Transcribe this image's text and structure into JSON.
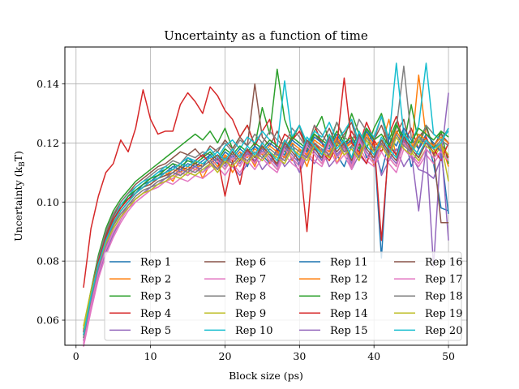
{
  "chart_data": {
    "type": "line",
    "title": "Uncertainty as a function of time",
    "xlabel": "Block size (ps)",
    "ylabel": "Uncertainty (k",
    "ylabel_sub": "B",
    "ylabel_tail": "T)",
    "xlim": [
      -1.5,
      52.5
    ],
    "ylim": [
      0.0515,
      0.1525
    ],
    "xticks": [
      0,
      10,
      20,
      30,
      40,
      50
    ],
    "xtick_labels": [
      "0",
      "10",
      "20",
      "30",
      "40",
      "50"
    ],
    "yticks": [
      0.06,
      0.08,
      0.1,
      0.12,
      0.14
    ],
    "ytick_labels": [
      "0.06",
      "0.08",
      "0.10",
      "0.12",
      "0.14"
    ],
    "grid": true,
    "legend_position": "lower-right",
    "legend_columns": 4,
    "x_start": 1,
    "x_end": 50,
    "series": [
      {
        "name": "Rep 1",
        "color": "#1f77b4",
        "values": [
          0.054,
          0.067,
          0.079,
          0.088,
          0.094,
          0.098,
          0.101,
          0.103,
          0.106,
          0.108,
          0.11,
          0.111,
          0.113,
          0.11,
          0.115,
          0.113,
          0.112,
          0.116,
          0.113,
          0.115,
          0.114,
          0.117,
          0.112,
          0.119,
          0.116,
          0.113,
          0.118,
          0.115,
          0.12,
          0.112,
          0.117,
          0.119,
          0.114,
          0.121,
          0.116,
          0.112,
          0.119,
          0.123,
          0.115,
          0.118,
          0.11,
          0.12,
          0.116,
          0.124,
          0.112,
          0.118,
          0.122,
          0.113,
          0.098,
          0.097
        ]
      },
      {
        "name": "Rep 2",
        "color": "#ff7f0e",
        "values": [
          0.053,
          0.066,
          0.078,
          0.086,
          0.092,
          0.097,
          0.1,
          0.103,
          0.105,
          0.107,
          0.108,
          0.11,
          0.107,
          0.112,
          0.11,
          0.114,
          0.108,
          0.113,
          0.111,
          0.116,
          0.11,
          0.114,
          0.117,
          0.112,
          0.119,
          0.113,
          0.116,
          0.121,
          0.114,
          0.118,
          0.112,
          0.12,
          0.116,
          0.123,
          0.113,
          0.118,
          0.121,
          0.115,
          0.125,
          0.112,
          0.119,
          0.128,
          0.115,
          0.121,
          0.117,
          0.143,
          0.122,
          0.116,
          0.12,
          0.112
        ]
      },
      {
        "name": "Rep 3",
        "color": "#2ca02c",
        "values": [
          0.057,
          0.07,
          0.082,
          0.091,
          0.097,
          0.101,
          0.104,
          0.107,
          0.109,
          0.111,
          0.113,
          0.115,
          0.117,
          0.119,
          0.121,
          0.123,
          0.121,
          0.124,
          0.12,
          0.125,
          0.118,
          0.122,
          0.126,
          0.119,
          0.132,
          0.123,
          0.145,
          0.128,
          0.121,
          0.126,
          0.118,
          0.124,
          0.129,
          0.12,
          0.127,
          0.121,
          0.13,
          0.123,
          0.118,
          0.125,
          0.13,
          0.121,
          0.127,
          0.119,
          0.133,
          0.12,
          0.126,
          0.118,
          0.124,
          0.113
        ]
      },
      {
        "name": "Rep 4",
        "color": "#d62728",
        "values": [
          0.071,
          0.091,
          0.102,
          0.11,
          0.113,
          0.121,
          0.117,
          0.125,
          0.138,
          0.128,
          0.123,
          0.124,
          0.124,
          0.133,
          0.137,
          0.134,
          0.13,
          0.139,
          0.136,
          0.131,
          0.128,
          0.122,
          0.126,
          0.119,
          0.124,
          0.128,
          0.117,
          0.123,
          0.121,
          0.124,
          0.118,
          0.126,
          0.12,
          0.115,
          0.121,
          0.118,
          0.124,
          0.119,
          0.127,
          0.121,
          0.117,
          0.123,
          0.129,
          0.12,
          0.125,
          0.118,
          0.122,
          0.116,
          0.12,
          0.115
        ]
      },
      {
        "name": "Rep 5",
        "color": "#9467bd",
        "values": [
          0.052,
          0.064,
          0.075,
          0.083,
          0.089,
          0.094,
          0.098,
          0.101,
          0.103,
          0.105,
          0.107,
          0.108,
          0.11,
          0.109,
          0.111,
          0.112,
          0.11,
          0.113,
          0.111,
          0.114,
          0.112,
          0.109,
          0.113,
          0.116,
          0.111,
          0.114,
          0.117,
          0.112,
          0.115,
          0.11,
          0.116,
          0.113,
          0.118,
          0.112,
          0.115,
          0.119,
          0.111,
          0.116,
          0.113,
          0.12,
          0.109,
          0.114,
          0.118,
          0.112,
          0.116,
          0.111,
          0.11,
          0.108,
          0.115,
          0.137
        ]
      },
      {
        "name": "Rep 6",
        "color": "#8c564b",
        "values": [
          0.055,
          0.068,
          0.08,
          0.089,
          0.095,
          0.1,
          0.103,
          0.106,
          0.108,
          0.11,
          0.112,
          0.113,
          0.115,
          0.117,
          0.116,
          0.118,
          0.115,
          0.119,
          0.117,
          0.121,
          0.118,
          0.122,
          0.119,
          0.14,
          0.122,
          0.119,
          0.124,
          0.118,
          0.122,
          0.126,
          0.117,
          0.123,
          0.12,
          0.125,
          0.119,
          0.123,
          0.127,
          0.118,
          0.124,
          0.121,
          0.126,
          0.119,
          0.123,
          0.128,
          0.117,
          0.122,
          0.125,
          0.119,
          0.123,
          0.12
        ]
      },
      {
        "name": "Rep 7",
        "color": "#e377c2",
        "values": [
          0.051,
          0.063,
          0.074,
          0.082,
          0.088,
          0.093,
          0.097,
          0.1,
          0.102,
          0.104,
          0.105,
          0.107,
          0.106,
          0.108,
          0.107,
          0.109,
          0.108,
          0.11,
          0.112,
          0.109,
          0.113,
          0.11,
          0.114,
          0.111,
          0.115,
          0.112,
          0.11,
          0.116,
          0.113,
          0.111,
          0.117,
          0.114,
          0.112,
          0.118,
          0.113,
          0.116,
          0.111,
          0.119,
          0.114,
          0.112,
          0.117,
          0.113,
          0.11,
          0.118,
          0.115,
          0.112,
          0.116,
          0.113,
          0.117,
          0.114
        ]
      },
      {
        "name": "Rep 8",
        "color": "#7f7f7f",
        "values": [
          0.056,
          0.069,
          0.081,
          0.09,
          0.096,
          0.1,
          0.103,
          0.105,
          0.107,
          0.109,
          0.111,
          0.112,
          0.114,
          0.113,
          0.116,
          0.115,
          0.117,
          0.116,
          0.118,
          0.12,
          0.117,
          0.121,
          0.119,
          0.123,
          0.12,
          0.124,
          0.121,
          0.119,
          0.125,
          0.122,
          0.118,
          0.126,
          0.123,
          0.119,
          0.127,
          0.122,
          0.12,
          0.128,
          0.124,
          0.121,
          0.129,
          0.119,
          0.125,
          0.146,
          0.122,
          0.118,
          0.126,
          0.123,
          0.121,
          0.125
        ]
      },
      {
        "name": "Rep 9",
        "color": "#bcbd22",
        "values": [
          0.058,
          0.07,
          0.08,
          0.087,
          0.091,
          0.095,
          0.098,
          0.101,
          0.103,
          0.104,
          0.106,
          0.107,
          0.108,
          0.11,
          0.109,
          0.111,
          0.11,
          0.112,
          0.114,
          0.111,
          0.115,
          0.112,
          0.116,
          0.113,
          0.117,
          0.114,
          0.111,
          0.118,
          0.115,
          0.112,
          0.119,
          0.116,
          0.113,
          0.12,
          0.115,
          0.118,
          0.112,
          0.121,
          0.116,
          0.113,
          0.119,
          0.115,
          0.112,
          0.12,
          0.117,
          0.114,
          0.118,
          0.115,
          0.119,
          0.116
        ]
      },
      {
        "name": "Rep 10",
        "color": "#17becf",
        "values": [
          0.054,
          0.067,
          0.079,
          0.088,
          0.094,
          0.099,
          0.102,
          0.105,
          0.107,
          0.108,
          0.11,
          0.112,
          0.111,
          0.113,
          0.115,
          0.114,
          0.116,
          0.118,
          0.115,
          0.119,
          0.121,
          0.118,
          0.122,
          0.12,
          0.124,
          0.121,
          0.119,
          0.141,
          0.122,
          0.126,
          0.12,
          0.124,
          0.122,
          0.127,
          0.121,
          0.124,
          0.128,
          0.12,
          0.125,
          0.122,
          0.129,
          0.121,
          0.147,
          0.123,
          0.12,
          0.126,
          0.147,
          0.123,
          0.121,
          0.124
        ]
      },
      {
        "name": "Rep 11",
        "color": "#1f77b4",
        "values": [
          0.056,
          0.069,
          0.08,
          0.088,
          0.094,
          0.098,
          0.101,
          0.104,
          0.106,
          0.107,
          0.109,
          0.11,
          0.112,
          0.111,
          0.113,
          0.112,
          0.114,
          0.116,
          0.113,
          0.117,
          0.115,
          0.118,
          0.116,
          0.119,
          0.117,
          0.12,
          0.118,
          0.116,
          0.121,
          0.119,
          0.117,
          0.122,
          0.12,
          0.118,
          0.123,
          0.119,
          0.121,
          0.117,
          0.124,
          0.12,
          0.081,
          0.122,
          0.119,
          0.125,
          0.121,
          0.118,
          0.123,
          0.12,
          0.117,
          0.096
        ]
      },
      {
        "name": "Rep 12",
        "color": "#ff7f0e",
        "values": [
          0.055,
          0.068,
          0.079,
          0.087,
          0.093,
          0.097,
          0.1,
          0.103,
          0.105,
          0.106,
          0.108,
          0.109,
          0.111,
          0.11,
          0.112,
          0.111,
          0.113,
          0.115,
          0.112,
          0.116,
          0.114,
          0.117,
          0.115,
          0.118,
          0.116,
          0.119,
          0.117,
          0.115,
          0.12,
          0.118,
          0.116,
          0.121,
          0.119,
          0.117,
          0.122,
          0.118,
          0.12,
          0.116,
          0.123,
          0.119,
          0.121,
          0.117,
          0.124,
          0.12,
          0.118,
          0.123,
          0.121,
          0.119,
          0.122,
          0.12
        ]
      },
      {
        "name": "Rep 13",
        "color": "#2ca02c",
        "values": [
          0.056,
          0.069,
          0.08,
          0.088,
          0.094,
          0.098,
          0.102,
          0.104,
          0.106,
          0.108,
          0.109,
          0.111,
          0.113,
          0.112,
          0.114,
          0.113,
          0.115,
          0.117,
          0.114,
          0.118,
          0.116,
          0.119,
          0.117,
          0.12,
          0.118,
          0.121,
          0.119,
          0.117,
          0.122,
          0.12,
          0.118,
          0.123,
          0.121,
          0.119,
          0.124,
          0.12,
          0.122,
          0.118,
          0.125,
          0.121,
          0.123,
          0.119,
          0.126,
          0.122,
          0.12,
          0.125,
          0.123,
          0.121,
          0.124,
          0.122
        ]
      },
      {
        "name": "Rep 14",
        "color": "#d62728",
        "values": [
          0.056,
          0.069,
          0.08,
          0.088,
          0.094,
          0.098,
          0.101,
          0.103,
          0.105,
          0.107,
          0.108,
          0.11,
          0.111,
          0.113,
          0.112,
          0.114,
          0.116,
          0.113,
          0.115,
          0.102,
          0.114,
          0.106,
          0.118,
          0.113,
          0.12,
          0.117,
          0.112,
          0.121,
          0.118,
          0.115,
          0.09,
          0.12,
          0.117,
          0.114,
          0.119,
          0.142,
          0.12,
          0.117,
          0.113,
          0.121,
          0.087,
          0.119,
          0.116,
          0.122,
          0.118,
          0.115,
          0.121,
          0.118,
          0.114,
          0.12
        ]
      },
      {
        "name": "Rep 15",
        "color": "#9467bd",
        "values": [
          0.053,
          0.066,
          0.077,
          0.085,
          0.091,
          0.095,
          0.099,
          0.101,
          0.103,
          0.105,
          0.106,
          0.108,
          0.109,
          0.111,
          0.11,
          0.112,
          0.111,
          0.113,
          0.115,
          0.112,
          0.116,
          0.113,
          0.117,
          0.114,
          0.118,
          0.115,
          0.112,
          0.119,
          0.116,
          0.113,
          0.12,
          0.117,
          0.114,
          0.121,
          0.116,
          0.119,
          0.113,
          0.122,
          0.117,
          0.114,
          0.12,
          0.116,
          0.113,
          0.121,
          0.117,
          0.097,
          0.119,
          0.078,
          0.12,
          0.087
        ]
      },
      {
        "name": "Rep 16",
        "color": "#8c564b",
        "values": [
          0.055,
          0.068,
          0.079,
          0.087,
          0.093,
          0.097,
          0.1,
          0.103,
          0.105,
          0.106,
          0.108,
          0.109,
          0.11,
          0.112,
          0.111,
          0.113,
          0.112,
          0.114,
          0.116,
          0.113,
          0.117,
          0.114,
          0.118,
          0.115,
          0.119,
          0.116,
          0.113,
          0.12,
          0.117,
          0.114,
          0.121,
          0.118,
          0.115,
          0.122,
          0.117,
          0.12,
          0.114,
          0.123,
          0.118,
          0.115,
          0.121,
          0.117,
          0.114,
          0.122,
          0.118,
          0.115,
          0.12,
          0.117,
          0.093,
          0.093
        ]
      },
      {
        "name": "Rep 17",
        "color": "#e377c2",
        "values": [
          0.052,
          0.065,
          0.076,
          0.084,
          0.09,
          0.094,
          0.098,
          0.1,
          0.102,
          0.104,
          0.105,
          0.107,
          0.108,
          0.11,
          0.109,
          0.111,
          0.11,
          0.112,
          0.114,
          0.111,
          0.115,
          0.112,
          0.116,
          0.113,
          0.117,
          0.114,
          0.111,
          0.118,
          0.115,
          0.112,
          0.119,
          0.116,
          0.113,
          0.12,
          0.115,
          0.118,
          0.112,
          0.121,
          0.116,
          0.113,
          0.119,
          0.115,
          0.112,
          0.12,
          0.116,
          0.113,
          0.118,
          0.115,
          0.117,
          0.114
        ]
      },
      {
        "name": "Rep 18",
        "color": "#7f7f7f",
        "values": [
          0.054,
          0.067,
          0.078,
          0.086,
          0.092,
          0.096,
          0.099,
          0.102,
          0.104,
          0.105,
          0.107,
          0.108,
          0.11,
          0.109,
          0.111,
          0.11,
          0.112,
          0.114,
          0.111,
          0.115,
          0.113,
          0.116,
          0.114,
          0.117,
          0.115,
          0.118,
          0.116,
          0.114,
          0.119,
          0.117,
          0.115,
          0.12,
          0.118,
          0.116,
          0.121,
          0.117,
          0.119,
          0.115,
          0.122,
          0.118,
          0.12,
          0.116,
          0.123,
          0.119,
          0.117,
          0.122,
          0.12,
          0.118,
          0.121,
          0.119
        ]
      },
      {
        "name": "Rep 19",
        "color": "#bcbd22",
        "values": [
          0.057,
          0.069,
          0.079,
          0.086,
          0.091,
          0.095,
          0.098,
          0.101,
          0.103,
          0.104,
          0.106,
          0.107,
          0.109,
          0.108,
          0.11,
          0.109,
          0.111,
          0.113,
          0.11,
          0.114,
          0.112,
          0.115,
          0.113,
          0.116,
          0.114,
          0.117,
          0.115,
          0.113,
          0.118,
          0.116,
          0.114,
          0.119,
          0.117,
          0.115,
          0.12,
          0.116,
          0.118,
          0.114,
          0.121,
          0.117,
          0.119,
          0.115,
          0.122,
          0.118,
          0.116,
          0.121,
          0.119,
          0.117,
          0.12,
          0.107
        ]
      },
      {
        "name": "Rep 20",
        "color": "#17becf",
        "values": [
          0.055,
          0.068,
          0.079,
          0.087,
          0.093,
          0.097,
          0.1,
          0.103,
          0.105,
          0.107,
          0.108,
          0.11,
          0.111,
          0.113,
          0.112,
          0.114,
          0.113,
          0.115,
          0.117,
          0.114,
          0.118,
          0.115,
          0.119,
          0.116,
          0.12,
          0.117,
          0.114,
          0.121,
          0.118,
          0.115,
          0.122,
          0.119,
          0.116,
          0.123,
          0.118,
          0.121,
          0.115,
          0.124,
          0.119,
          0.116,
          0.122,
          0.118,
          0.115,
          0.123,
          0.119,
          0.116,
          0.121,
          0.118,
          0.12,
          0.125
        ]
      }
    ]
  }
}
